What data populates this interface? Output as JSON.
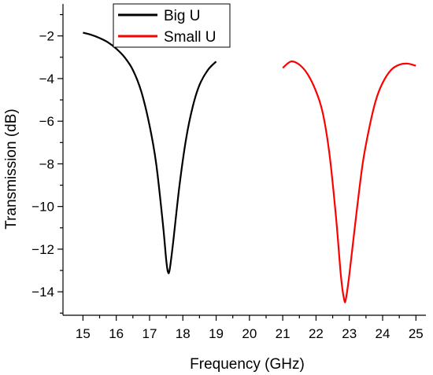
{
  "chart_data": {
    "type": "line",
    "xlabel": "Frequency (GHz)",
    "ylabel": "Transmission (dB)",
    "xlim": [
      14.4,
      25.3
    ],
    "ylim": [
      -15.1,
      -0.5
    ],
    "xticks": [
      15,
      16,
      17,
      18,
      19,
      20,
      21,
      22,
      23,
      24,
      25
    ],
    "yticks": [
      -14,
      -12,
      -10,
      -8,
      -6,
      -4,
      -2
    ],
    "grid": false,
    "legend": "top-left",
    "series": [
      {
        "name": "Big U",
        "color": "#000000",
        "x": [
          15.0,
          15.25,
          15.5,
          15.75,
          16.0,
          16.25,
          16.5,
          16.75,
          17.0,
          17.2,
          17.4,
          17.5,
          17.55,
          17.6,
          17.7,
          17.9,
          18.1,
          18.3,
          18.5,
          18.75,
          19.0
        ],
        "y": [
          -1.85,
          -1.95,
          -2.1,
          -2.3,
          -2.6,
          -3.0,
          -3.6,
          -4.6,
          -6.2,
          -8.0,
          -10.8,
          -12.5,
          -13.05,
          -13.0,
          -11.8,
          -9.0,
          -6.8,
          -5.3,
          -4.3,
          -3.6,
          -3.2
        ]
      },
      {
        "name": "Small U",
        "color": "#ff0000",
        "x": [
          21.0,
          21.25,
          21.5,
          21.75,
          22.0,
          22.2,
          22.4,
          22.6,
          22.75,
          22.85,
          22.9,
          23.0,
          23.2,
          23.4,
          23.6,
          23.8,
          24.0,
          24.25,
          24.5,
          24.75,
          25.0
        ],
        "y": [
          -3.5,
          -3.2,
          -3.35,
          -3.8,
          -4.6,
          -5.6,
          -7.5,
          -10.5,
          -13.3,
          -14.4,
          -14.3,
          -13.2,
          -10.5,
          -8.0,
          -6.3,
          -5.0,
          -4.2,
          -3.6,
          -3.35,
          -3.3,
          -3.4
        ]
      }
    ]
  }
}
